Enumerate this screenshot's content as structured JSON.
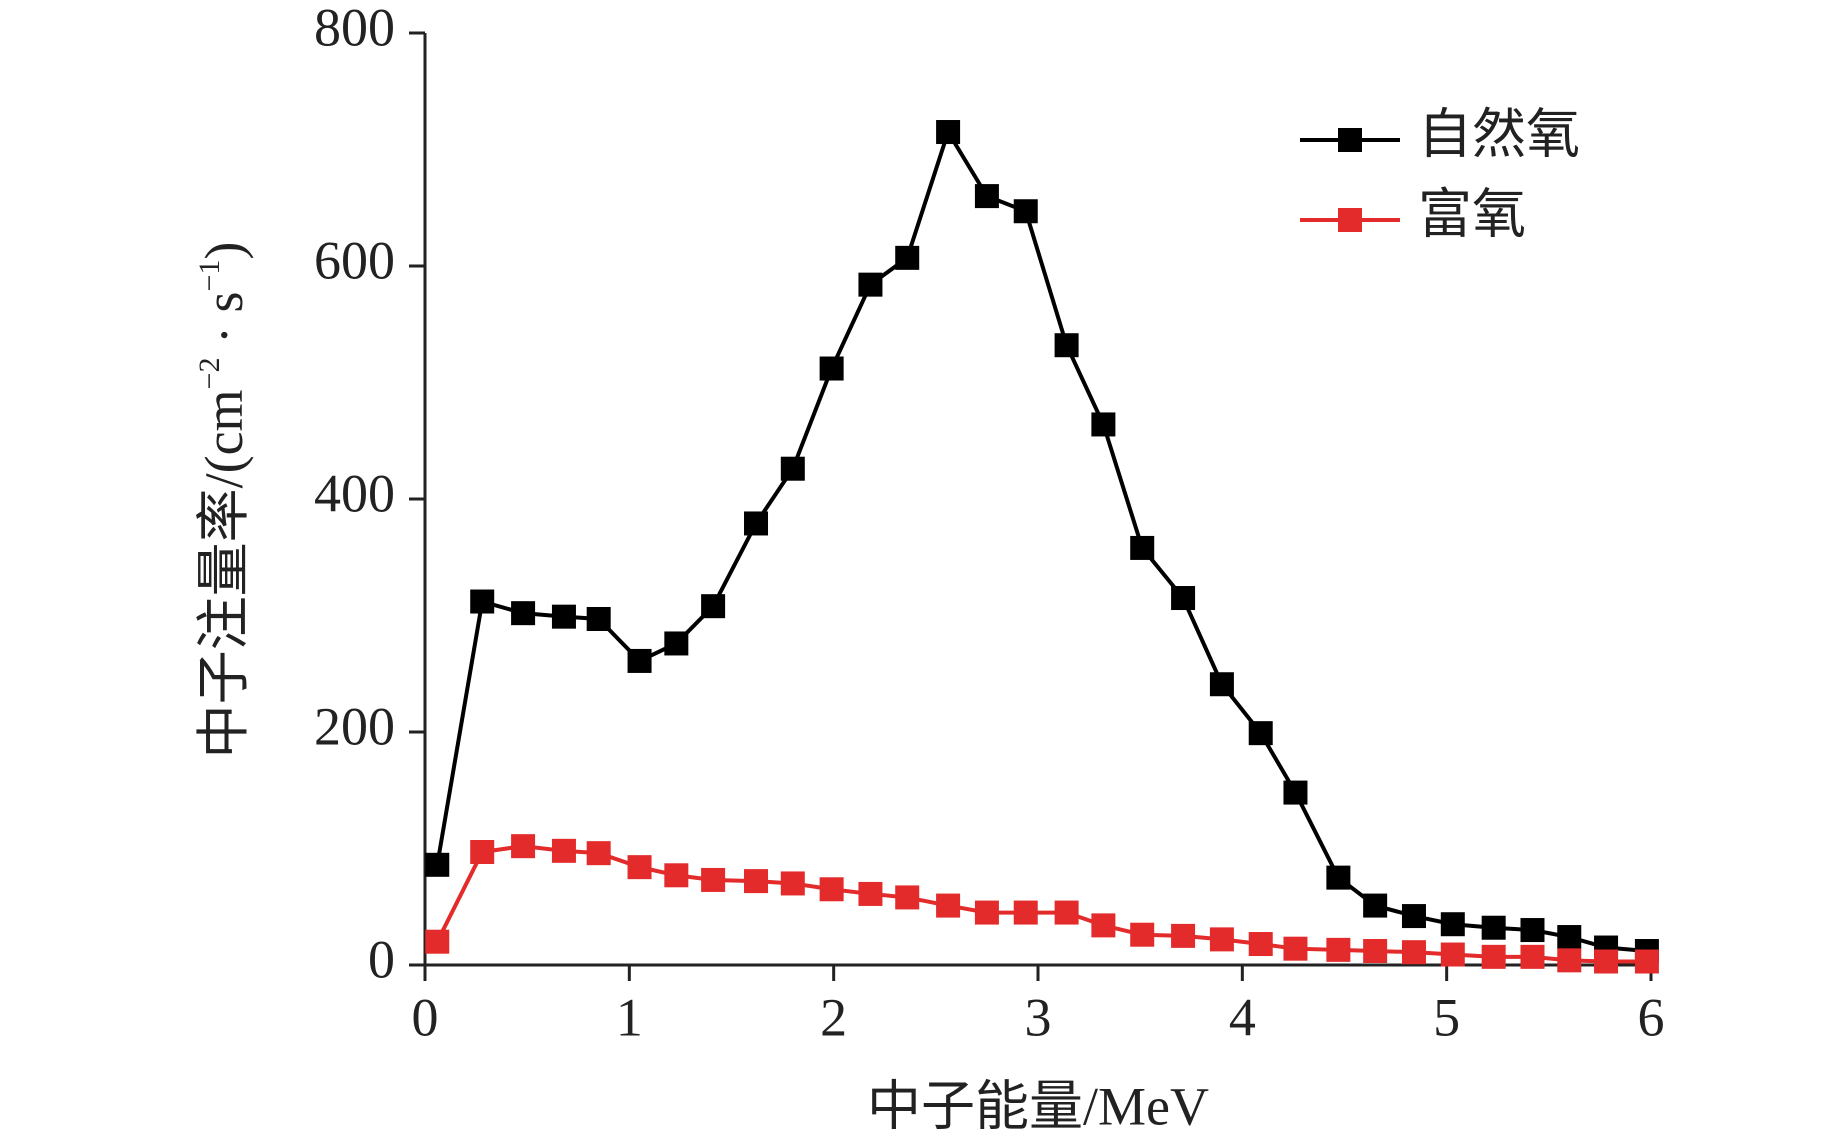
{
  "chart_data": {
    "type": "line",
    "x_label": "中子能量/MeV",
    "y_label_parts": [
      "中子注量率/(cm",
      "−2",
      " · s",
      "−1",
      ")"
    ],
    "x": [
      0.06,
      0.28,
      0.48,
      0.68,
      0.85,
      1.05,
      1.23,
      1.41,
      1.62,
      1.8,
      1.99,
      2.18,
      2.36,
      2.56,
      2.75,
      2.94,
      3.14,
      3.32,
      3.51,
      3.71,
      3.9,
      4.09,
      4.26,
      4.47,
      4.65,
      4.84,
      5.03,
      5.23,
      5.42,
      5.6,
      5.78,
      5.98
    ],
    "series": [
      {
        "name": "自然氧",
        "color": "#000000",
        "values": [
          86,
          312,
          302,
          299,
          297,
          261,
          276,
          308,
          379,
          426,
          512,
          584,
          607,
          715,
          660,
          647,
          532,
          464,
          358,
          315,
          241,
          199,
          148,
          75,
          51,
          42,
          35,
          32,
          30,
          24,
          15,
          12
        ]
      },
      {
        "name": "富氧",
        "color": "#e32b2b",
        "values": [
          20,
          97,
          102,
          98,
          96,
          84,
          77,
          73,
          72,
          70,
          65,
          61,
          58,
          51,
          45,
          45,
          45,
          34,
          26,
          25,
          22,
          18,
          14,
          13,
          12,
          11,
          9,
          7,
          7,
          4,
          3,
          3
        ]
      }
    ],
    "xlim": [
      0,
      6
    ],
    "xticks": [
      0,
      1,
      2,
      3,
      4,
      5,
      6
    ],
    "ylim": [
      0,
      800
    ],
    "yticks": [
      0,
      200,
      400,
      600,
      800
    ],
    "grid": false,
    "legend": "upper right"
  }
}
